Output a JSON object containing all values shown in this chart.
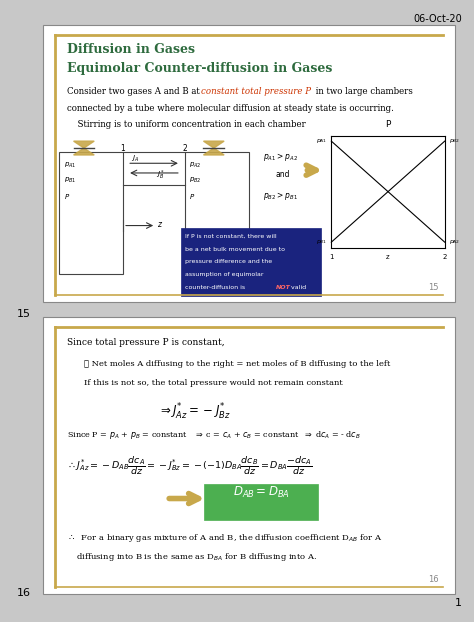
{
  "date_text": "06-Oct-20",
  "page_num1": "15",
  "page_num2": "16",
  "slide1": {
    "title_line1": "Diffusion in Gases",
    "title_line2": "Equimolar Counter-diffusion in Gases",
    "body_pre": "Consider two gases A and B at ",
    "body_red": "constant total pressure P",
    "body_post": " in two large chambers",
    "body_line2": "connected by a tube where molecular diffusion at steady state is occurring.",
    "body_line3": "  Stirring is to uniform concentration in each chamber",
    "note_line1": "If P is not constant, there will",
    "note_line2": "be a net bulk movement due to",
    "note_line3": "pressure difference and the",
    "note_line4": "assumption of equimolar",
    "note_line5": "counter-diffusion is ",
    "note_not": "NOT",
    "note_valid": " valid",
    "page_number": "15",
    "title_color": "#2E6B3E",
    "red_color": "#cc3300",
    "border_color": "#C8A84B",
    "note_bg": "#1a237e",
    "note_not_color": "#ff6666"
  },
  "slide2": {
    "line1": "Since total pressure P is constant,",
    "indent1": "∴ Net moles A diffusing to the right = net moles of B diffusing to the left",
    "indent2": "If this is not so, the total pressure would not remain constant",
    "conclusion1": "∴  For a binary gas mixture of A and B, the diffusion coefficient D",
    "conclusion2": "diffusing into B is the same as D",
    "page_number": "16",
    "border_color": "#C8A84B",
    "green_bg": "#4CAF50",
    "arrow_color": "#C8A84B"
  },
  "outer_bg": "#c8c8c8",
  "slide_bg": "#ffffff",
  "border_outer": "#888888"
}
